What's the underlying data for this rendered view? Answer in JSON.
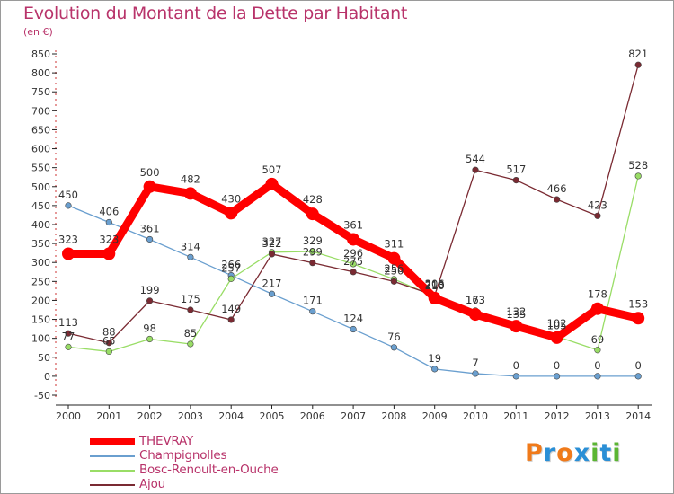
{
  "title": "Evolution du Montant de la Dette par Habitant",
  "unit_label": "(en €)",
  "logo": {
    "text": "Proxiti",
    "colors": [
      "#f07a1a",
      "#2a8fd6",
      "#f07a1a",
      "#2a8fd6",
      "#5bb533",
      "#2a8fd6",
      "#5bb533"
    ]
  },
  "chart_data": {
    "type": "line",
    "x": [
      "2000",
      "2001",
      "2002",
      "2003",
      "2004",
      "2005",
      "2006",
      "2007",
      "2008",
      "2009",
      "2010",
      "2011",
      "2012",
      "2013",
      "2014"
    ],
    "ylim": [
      -50,
      850
    ],
    "yticks": [
      "-50",
      "0",
      "50",
      "100",
      "150",
      "200",
      "250",
      "300",
      "350",
      "400",
      "450",
      "500",
      "550",
      "600",
      "650",
      "700",
      "750",
      "800",
      "850"
    ],
    "grid": false,
    "legend": "bottom-left",
    "series": [
      {
        "name": "THEVRAY",
        "color": "#ff0000",
        "values": [
          323,
          323,
          500,
          482,
          430,
          507,
          428,
          361,
          311,
          206,
          163,
          132,
          102,
          178,
          153
        ],
        "labels": [
          "323",
          "323",
          "500",
          "482",
          "430",
          "507",
          "428",
          "361",
          "311",
          "206",
          "163",
          "132",
          "102",
          "178",
          "153"
        ]
      },
      {
        "name": "Champignolles",
        "color": "#6a9fcf",
        "values": [
          450,
          406,
          361,
          314,
          266,
          217,
          171,
          124,
          76,
          19,
          7,
          0,
          0,
          0,
          0
        ],
        "labels": [
          "450",
          "406",
          "361",
          "314",
          "266",
          "217",
          "171",
          "124",
          "76",
          "19",
          "7",
          "0",
          "0",
          "0",
          "0"
        ]
      },
      {
        "name": "Bosc-Renoult-en-Ouche",
        "color": "#99dd66",
        "values": [
          77,
          65,
          98,
          85,
          257,
          327,
          329,
          296,
          256,
          210,
          173,
          135,
          105,
          69,
          528
        ],
        "labels": [
          "77",
          "65",
          "98",
          "85",
          "257",
          "327",
          "329",
          "296",
          "256",
          "210",
          "173",
          "135",
          "105",
          "69",
          "528"
        ]
      },
      {
        "name": "Ajou",
        "color": "#7a2a32",
        "values": [
          113,
          88,
          199,
          175,
          149,
          322,
          299,
          275,
          250,
          213,
          544,
          517,
          466,
          423,
          821
        ],
        "labels": [
          "113",
          "88",
          "199",
          "175",
          "149",
          "322",
          "299",
          "275",
          "250",
          "213",
          "544",
          "517",
          "466",
          "423",
          "821"
        ]
      }
    ]
  }
}
